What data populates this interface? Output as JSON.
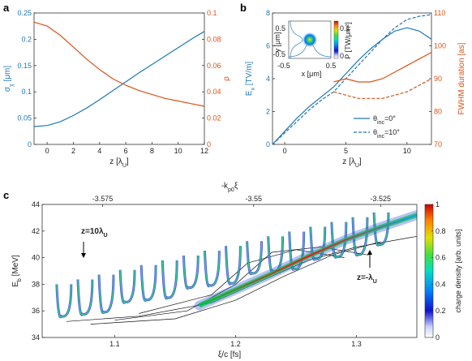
{
  "figure": {
    "panel_labels": [
      "a",
      "b",
      "c"
    ]
  },
  "chart_data": [
    {
      "panel": "a",
      "type": "line",
      "x": [
        -1,
        0,
        1,
        2,
        3,
        4,
        5,
        6,
        7,
        8,
        9,
        10,
        11,
        12
      ],
      "xlabel": "z [λU]",
      "xlim": [
        -1,
        12
      ],
      "xticks": [
        0,
        2,
        4,
        6,
        8,
        10,
        12
      ],
      "left_axis": {
        "label": "σχ [μm]",
        "ylim": [
          0,
          0.25
        ],
        "ticks": [
          0,
          0.05,
          0.1,
          0.15,
          0.2,
          0.25
        ],
        "color": "#1f77b4"
      },
      "right_axis": {
        "label": "ρ",
        "ylim": [
          0,
          0.1
        ],
        "ticks": [
          0,
          0.02,
          0.04,
          0.06,
          0.08,
          0.1
        ],
        "color": "#d95319"
      },
      "series": [
        {
          "axis": "left",
          "color": "#1f77b4",
          "values": [
            0.034,
            0.036,
            0.043,
            0.055,
            0.069,
            0.085,
            0.102,
            0.119,
            0.136,
            0.152,
            0.168,
            0.184,
            0.2,
            0.215
          ]
        },
        {
          "axis": "right",
          "color": "#d95319",
          "values": [
            0.093,
            0.09,
            0.083,
            0.074,
            0.065,
            0.057,
            0.05,
            0.045,
            0.041,
            0.038,
            0.035,
            0.033,
            0.031,
            0.029
          ]
        }
      ]
    },
    {
      "panel": "b",
      "type": "line",
      "xlabel": "z [λU]",
      "xlim": [
        -1,
        12
      ],
      "xticks": [
        0,
        5,
        10
      ],
      "left_axis": {
        "label": "Ex [TV/m]",
        "ylim": [
          0,
          8
        ],
        "ticks": [
          0,
          2,
          4,
          6,
          8
        ],
        "color": "#1f77b4"
      },
      "right_axis": {
        "label": "FWHM duration [as]",
        "ylim": [
          70,
          110
        ],
        "ticks": [
          70,
          80,
          90,
          100,
          110
        ],
        "color": "#d95319"
      },
      "legend": {
        "position": "bottom-right",
        "entries": [
          "θinc=0°",
          "θinc=10°"
        ]
      },
      "series": [
        {
          "axis": "left",
          "color": "#1f77b4",
          "dash": "solid",
          "x": [
            -1,
            0,
            1,
            2,
            3,
            4,
            5,
            6,
            7,
            8,
            9,
            10,
            11,
            12
          ],
          "values": [
            0,
            0.8,
            1.6,
            2.3,
            2.9,
            3.5,
            4.3,
            5.1,
            5.8,
            6.4,
            6.9,
            7.1,
            6.9,
            6.4
          ]
        },
        {
          "axis": "left",
          "color": "#1f77b4",
          "dash": "dashed",
          "x": [
            -1,
            0,
            1,
            2,
            3,
            4,
            5,
            6,
            7,
            8,
            9,
            10,
            11,
            12
          ],
          "values": [
            0,
            0.7,
            1.4,
            2.1,
            2.7,
            3.2,
            4.0,
            4.8,
            5.6,
            6.4,
            7.1,
            7.6,
            7.8,
            7.9
          ]
        },
        {
          "axis": "right",
          "color": "#d95319",
          "dash": "solid",
          "x": [
            4,
            5,
            6,
            7,
            8,
            9,
            10,
            11,
            12
          ],
          "values": [
            89,
            90,
            89,
            89,
            90,
            92,
            94,
            96,
            98
          ]
        },
        {
          "axis": "right",
          "color": "#d95319",
          "dash": "dashed",
          "x": [
            4,
            5,
            6,
            7,
            8,
            9,
            10,
            11,
            12
          ],
          "values": [
            86,
            85,
            84,
            84,
            84,
            85,
            86,
            88,
            90
          ]
        }
      ],
      "inset": {
        "xlabel": "x [μm]",
        "ylabel": "y [μm]",
        "xticks": [
          "-0.5",
          "0.5"
        ],
        "yticks": [
          "0.5",
          "-0.5"
        ],
        "colorbar_label": "P [TW/μm²]",
        "colorbar_ticks": [
          "0.1",
          "0"
        ]
      }
    },
    {
      "panel": "c",
      "type": "heatmap",
      "xlabel": "ξ/c [fs]",
      "xlim": [
        1.04,
        1.35
      ],
      "xticks": [
        1.1,
        1.2,
        1.3
      ],
      "top_axis": {
        "label": "-kp0ξ",
        "ticks": [
          "-3.575",
          "-3.55",
          "-3.525"
        ]
      },
      "ylabel": "Eb [MeV]",
      "ylim": [
        34,
        44
      ],
      "yticks": [
        34,
        36,
        38,
        40,
        42,
        44
      ],
      "colorbar": {
        "label": "charge density [arb. units]",
        "range": [
          0,
          1
        ],
        "ticks": [
          0,
          0.2,
          0.4,
          0.6,
          0.8,
          1
        ]
      },
      "annotations": [
        {
          "text": "z=10λU",
          "x": 1.085,
          "y": 42
        },
        {
          "text": "z=-λU",
          "x": 1.32,
          "y": 36
        }
      ]
    }
  ]
}
